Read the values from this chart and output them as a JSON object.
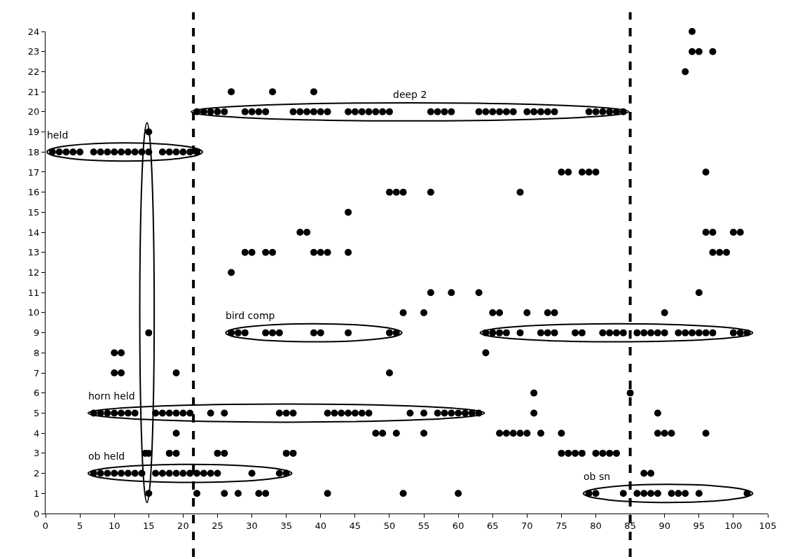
{
  "chart_data": {
    "type": "scatter",
    "marker": "circle",
    "xlim": [
      0,
      105
    ],
    "xticks": [
      0,
      5,
      10,
      15,
      20,
      25,
      30,
      35,
      40,
      45,
      50,
      55,
      60,
      65,
      70,
      75,
      80,
      85,
      90,
      95,
      100,
      105
    ],
    "ylim": [
      0,
      24
    ],
    "yticks": [
      0,
      1,
      2,
      3,
      4,
      5,
      6,
      7,
      8,
      9,
      10,
      11,
      12,
      13,
      14,
      15,
      16,
      17,
      18,
      19,
      20,
      21,
      22,
      23,
      24
    ],
    "ref_lines": [
      {
        "axis": "x",
        "value": 21.5,
        "line_style": "dashed",
        "color": "#000000"
      },
      {
        "axis": "x",
        "value": 85,
        "line_style": "dashed",
        "color": "#000000"
      }
    ],
    "series": [
      {
        "color": "#000000",
        "x": [
          94,
          94,
          95,
          97,
          93,
          27,
          33,
          39,
          75,
          76,
          78,
          79,
          80,
          96,
          50,
          51,
          52,
          56,
          69,
          44,
          37,
          38,
          96,
          97,
          100,
          101,
          29,
          30,
          32,
          33,
          39,
          40,
          41,
          44,
          97,
          98,
          99,
          27,
          56,
          59,
          63,
          95,
          52,
          55,
          65,
          66,
          70,
          73,
          74,
          90,
          64,
          10,
          11,
          10,
          11,
          19,
          50,
          71,
          85,
          71,
          89,
          19,
          48,
          49,
          51,
          55,
          66,
          67,
          68,
          69,
          70,
          72,
          75,
          89,
          90,
          91,
          96,
          18,
          19,
          25,
          26,
          35,
          36,
          75,
          76,
          77,
          78,
          80,
          81,
          82,
          83,
          87,
          88,
          22,
          26,
          28,
          31,
          32,
          41,
          52,
          60
        ],
        "values": [
          24,
          23,
          23,
          23,
          22,
          21,
          21,
          21,
          17,
          17,
          17,
          17,
          17,
          17,
          16,
          16,
          16,
          16,
          16,
          15,
          14,
          14,
          14,
          14,
          14,
          14,
          13,
          13,
          13,
          13,
          13,
          13,
          13,
          13,
          13,
          13,
          13,
          12,
          11,
          11,
          11,
          11,
          10,
          10,
          10,
          10,
          10,
          10,
          10,
          10,
          8,
          8,
          8,
          7,
          7,
          7,
          7,
          6,
          6,
          5,
          5,
          4,
          4,
          4,
          4,
          4,
          4,
          4,
          4,
          4,
          4,
          4,
          4,
          4,
          4,
          4,
          4,
          3,
          3,
          3,
          3,
          3,
          3,
          3,
          3,
          3,
          3,
          3,
          3,
          3,
          3,
          2,
          2,
          1,
          1,
          1,
          1,
          1,
          1,
          1,
          1
        ]
      },
      {
        "name": "held",
        "color": "#000000",
        "x": [
          1,
          2,
          3,
          4,
          5,
          7,
          8,
          9,
          10,
          11,
          12,
          13,
          14,
          15,
          17,
          18,
          19,
          20,
          21,
          22
        ],
        "values": [
          18,
          18,
          18,
          18,
          18,
          18,
          18,
          18,
          18,
          18,
          18,
          18,
          18,
          18,
          18,
          18,
          18,
          18,
          18,
          18
        ]
      },
      {
        "name": "deep 2",
        "color": "#000000",
        "x": [
          22,
          23,
          24,
          25,
          26,
          29,
          30,
          31,
          32,
          36,
          37,
          38,
          39,
          40,
          41,
          44,
          45,
          46,
          47,
          48,
          49,
          50,
          56,
          57,
          58,
          59,
          63,
          64,
          65,
          66,
          67,
          68,
          70,
          71,
          72,
          73,
          74,
          79,
          80,
          81,
          82,
          83,
          84
        ],
        "values": [
          20,
          20,
          20,
          20,
          20,
          20,
          20,
          20,
          20,
          20,
          20,
          20,
          20,
          20,
          20,
          20,
          20,
          20,
          20,
          20,
          20,
          20,
          20,
          20,
          20,
          20,
          20,
          20,
          20,
          20,
          20,
          20,
          20,
          20,
          20,
          20,
          20,
          20,
          20,
          20,
          20,
          20,
          20
        ]
      },
      {
        "name": "horn held",
        "color": "#000000",
        "x": [
          7,
          8,
          9,
          10,
          11,
          12,
          13,
          16,
          17,
          18,
          19,
          20,
          21,
          24,
          26,
          34,
          35,
          36,
          41,
          42,
          43,
          44,
          45,
          46,
          47,
          53,
          55,
          57,
          58,
          59,
          60,
          61,
          62,
          63
        ],
        "values": [
          5,
          5,
          5,
          5,
          5,
          5,
          5,
          5,
          5,
          5,
          5,
          5,
          5,
          5,
          5,
          5,
          5,
          5,
          5,
          5,
          5,
          5,
          5,
          5,
          5,
          5,
          5,
          5,
          5,
          5,
          5,
          5,
          5,
          5
        ]
      },
      {
        "name": "ob held",
        "color": "#000000",
        "x": [
          7,
          8,
          9,
          10,
          11,
          12,
          13,
          14,
          16,
          17,
          18,
          19,
          20,
          21,
          22,
          23,
          24,
          25,
          30,
          34,
          35
        ],
        "values": [
          2,
          2,
          2,
          2,
          2,
          2,
          2,
          2,
          2,
          2,
          2,
          2,
          2,
          2,
          2,
          2,
          2,
          2,
          2,
          2,
          2
        ]
      },
      {
        "name": "bird comp",
        "color": "#000000",
        "x": [
          27,
          28,
          29,
          32,
          33,
          34,
          39,
          40,
          44,
          50,
          51
        ],
        "values": [
          9,
          9,
          9,
          9,
          9,
          9,
          9,
          9,
          9,
          9,
          9
        ]
      },
      {
        "color": "#000000",
        "x": [
          64,
          65,
          66,
          67,
          69,
          72,
          73,
          74,
          77,
          78,
          81,
          82,
          83,
          84,
          86,
          87,
          88,
          89,
          90,
          92,
          93,
          94,
          95,
          96,
          97,
          100,
          101,
          102
        ],
        "values": [
          9,
          9,
          9,
          9,
          9,
          9,
          9,
          9,
          9,
          9,
          9,
          9,
          9,
          9,
          9,
          9,
          9,
          9,
          9,
          9,
          9,
          9,
          9,
          9,
          9,
          9,
          9,
          9
        ]
      },
      {
        "name": "ob sn",
        "color": "#000000",
        "x": [
          79,
          80,
          84,
          86,
          87,
          88,
          89,
          91,
          92,
          93,
          95,
          102
        ],
        "values": [
          1,
          1,
          1,
          1,
          1,
          1,
          1,
          1,
          1,
          1,
          1,
          1
        ]
      },
      {
        "color": "#000000",
        "x": [
          15,
          14.5,
          15,
          15,
          15
        ],
        "values": [
          1,
          3,
          3,
          9,
          19
        ]
      }
    ]
  }
}
